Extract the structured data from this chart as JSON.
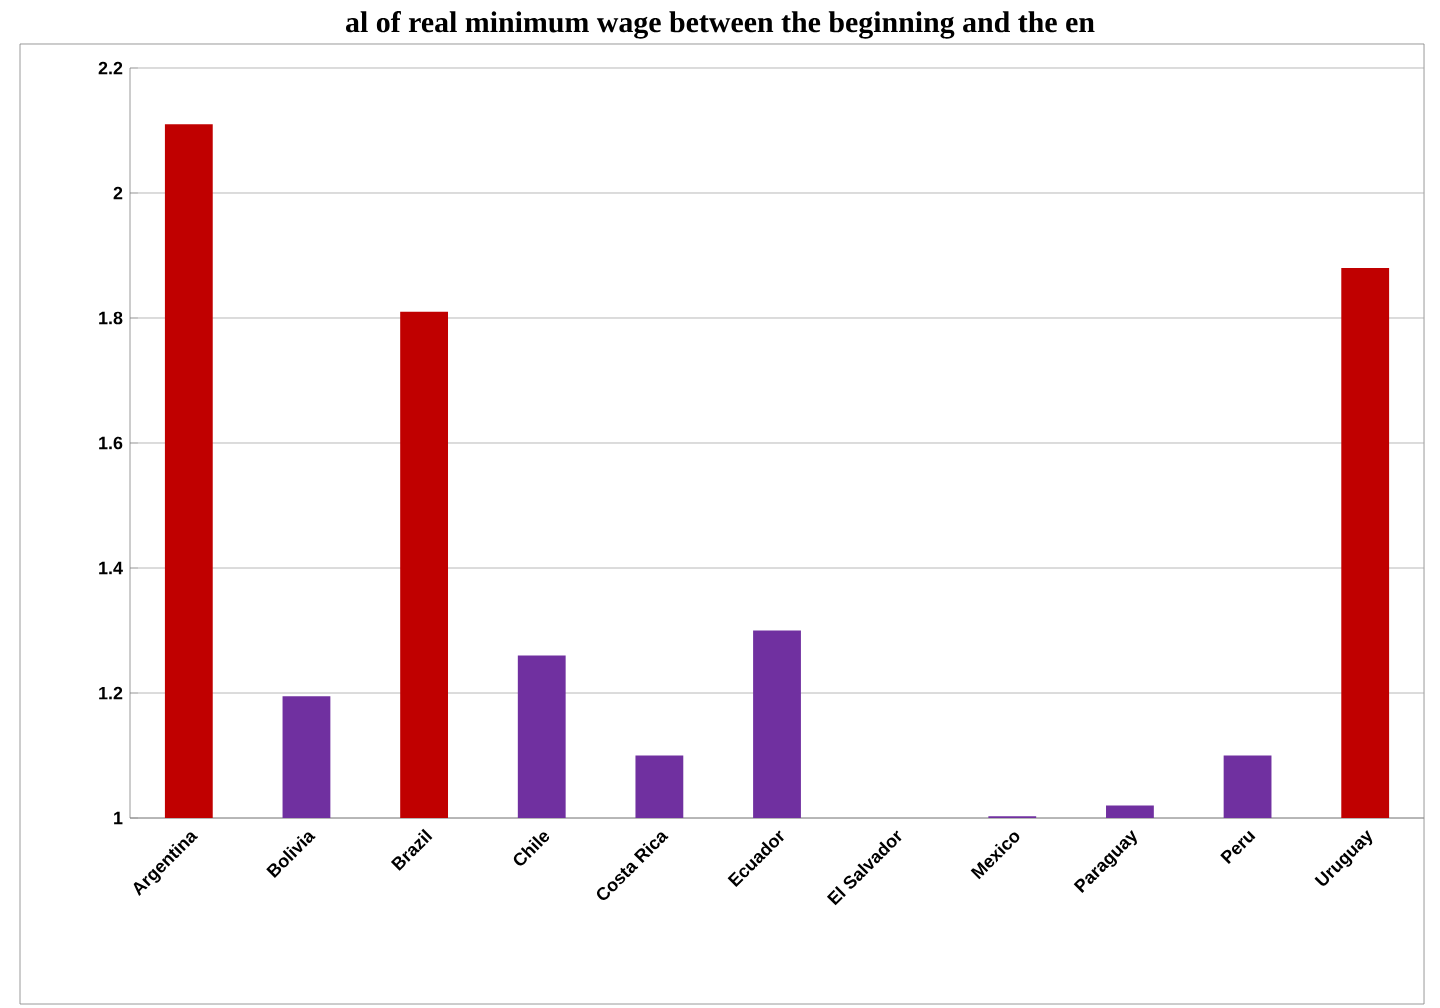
{
  "chart_data": {
    "type": "bar",
    "title": "al of real minimum wage between the beginning and the en",
    "categories": [
      "Argentina",
      "Bolivia",
      "Brazil",
      "Chile",
      "Costa Rica",
      "Ecuador",
      "El Salvador",
      "Mexico",
      "Paraguay",
      "Peru",
      "Uruguay"
    ],
    "values": [
      2.11,
      1.195,
      1.81,
      1.26,
      1.1,
      1.3,
      1,
      1.003,
      1.02,
      1.1,
      1.88
    ],
    "colors": [
      "#c00000",
      "#7030a0",
      "#c00000",
      "#7030a0",
      "#7030a0",
      "#7030a0",
      "#7030a0",
      "#7030a0",
      "#7030a0",
      "#7030a0",
      "#c00000"
    ],
    "ylim": [
      1,
      2.2
    ],
    "yticks": [
      1,
      1.2,
      1.4,
      1.6,
      1.8,
      2,
      2.2
    ],
    "grid": "y"
  }
}
